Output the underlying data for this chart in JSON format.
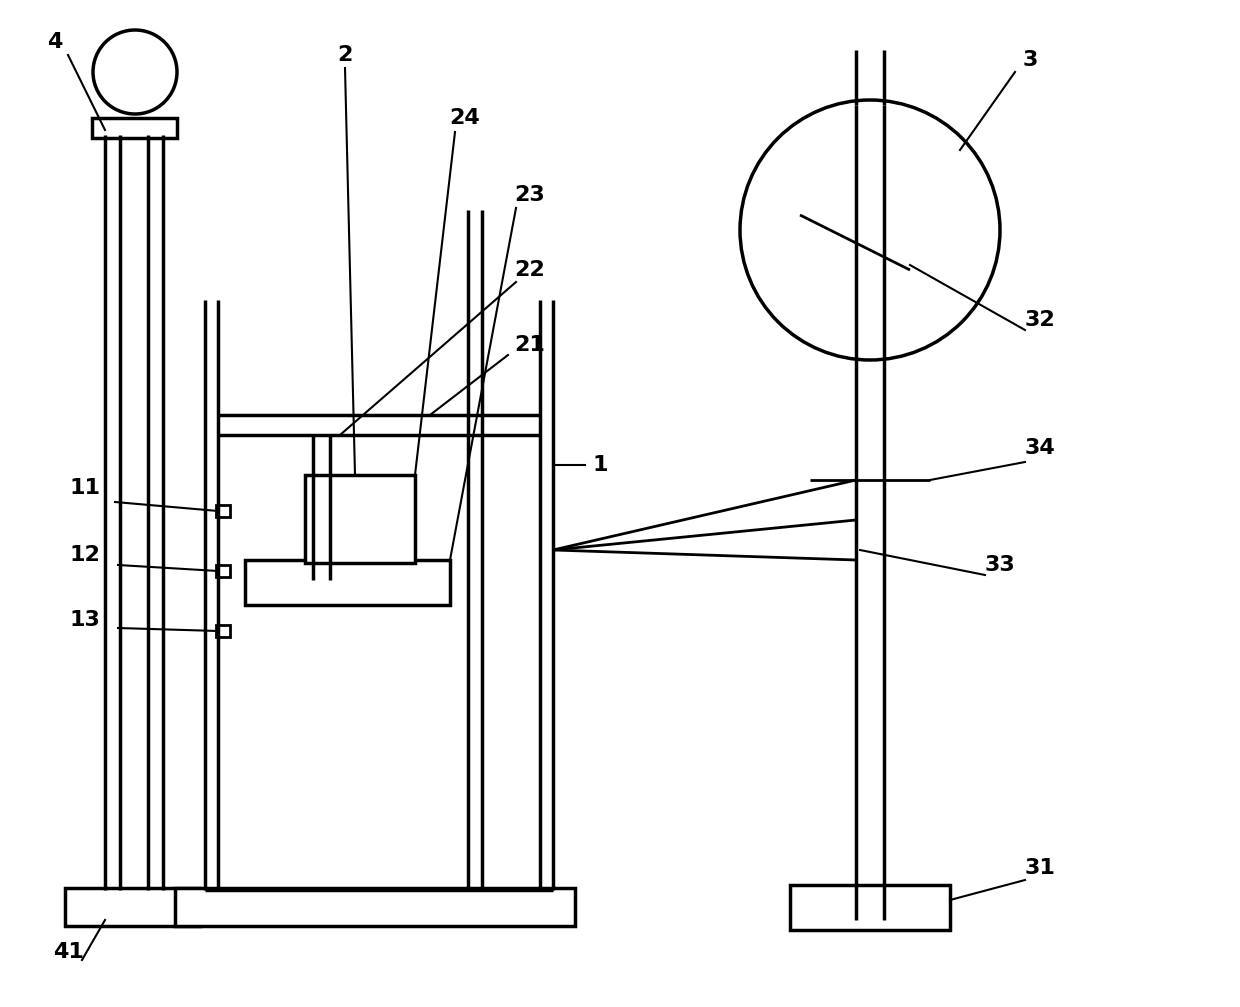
{
  "bg_color": "#ffffff",
  "lc": "#000000",
  "lw": 2.0,
  "lw_thick": 2.5,
  "fig_w": 12.4,
  "fig_h": 10.07,
  "label_fs": 16
}
